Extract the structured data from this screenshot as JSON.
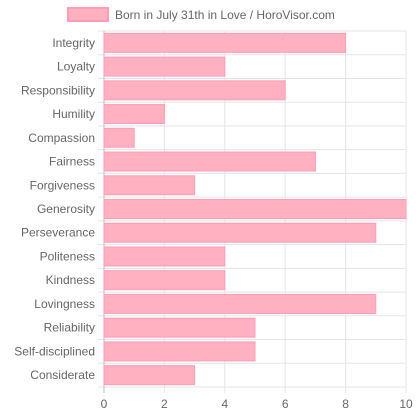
{
  "chart_data": {
    "type": "bar",
    "orientation": "horizontal",
    "legend": {
      "label": "Born in July 31th in Love / HoroVisor.com",
      "placement": "top"
    },
    "categories": [
      "Integrity",
      "Loyalty",
      "Responsibility",
      "Humility",
      "Compassion",
      "Fairness",
      "Forgiveness",
      "Generosity",
      "Perseverance",
      "Politeness",
      "Kindness",
      "Lovingness",
      "Reliability",
      "Self-disciplined",
      "Considerate"
    ],
    "values": [
      8,
      4,
      6,
      2,
      1,
      7,
      3,
      10,
      9,
      4,
      4,
      9,
      5,
      5,
      3
    ],
    "xlim": [
      0,
      10
    ],
    "xticks": [
      "0",
      "2",
      "4",
      "6",
      "8",
      "10"
    ],
    "grid": true,
    "colors": {
      "bar_fill": "#ffb1c1",
      "bar_stroke": "#ff9eb4",
      "grid": "#e5e5e5",
      "axis": "#bdbdbd",
      "text": "#666666"
    }
  }
}
